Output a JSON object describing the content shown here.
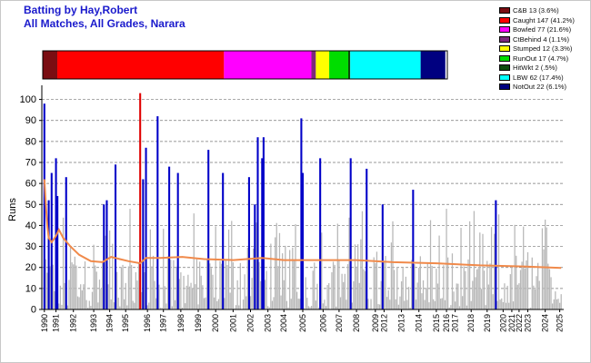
{
  "title_line1": "Batting by Hay,Robert",
  "title_line2": "All Matches, All Grades, Narara",
  "dismissals": [
    {
      "label": "C&B 13 (3.6%)",
      "pct": 3.6,
      "color": "#7a0d12"
    },
    {
      "label": "Caught 147 (41.2%)",
      "pct": 41.2,
      "color": "#ff0000"
    },
    {
      "label": "Bowled 77 (21.6%)",
      "pct": 21.6,
      "color": "#ff00ff"
    },
    {
      "label": "CtBehind 4 (1.1%)",
      "pct": 1.1,
      "color": "#7a2a7a"
    },
    {
      "label": "Stumped 12 (3.3%)",
      "pct": 3.3,
      "color": "#ffff00"
    },
    {
      "label": "RunOut 17 (4.7%)",
      "pct": 4.7,
      "color": "#00dd00"
    },
    {
      "label": "HitWkt 2 (.5%)",
      "pct": 0.5,
      "color": "#0a4d0a"
    },
    {
      "label": "LBW 62 (17.4%)",
      "pct": 17.4,
      "color": "#00ffff"
    },
    {
      "label": "NotOut 22 (6.1%)",
      "pct": 6.1,
      "color": "#000080"
    }
  ],
  "chart_data": {
    "type": "bar",
    "title": "Batting by Hay,Robert",
    "subtitle": "All Matches, All Grades, Narara",
    "ylabel": "Runs",
    "xlabel": "",
    "ylim": [
      0,
      105
    ],
    "yticks": [
      0,
      10,
      20,
      30,
      40,
      50,
      60,
      70,
      80,
      90,
      100
    ],
    "grid": "horizontal dashed",
    "innings_count": 357,
    "x_tick_labels": [
      {
        "label": "1990",
        "innings": 0
      },
      {
        "label": "1991",
        "innings": 8
      },
      {
        "label": "1992",
        "innings": 20
      },
      {
        "label": "1993",
        "innings": 34
      },
      {
        "label": "1994",
        "innings": 45
      },
      {
        "label": "1995",
        "innings": 56
      },
      {
        "label": "1996",
        "innings": 71
      },
      {
        "label": "1997",
        "innings": 82
      },
      {
        "label": "1998",
        "innings": 94
      },
      {
        "label": "1999",
        "innings": 106
      },
      {
        "label": "2000",
        "innings": 118
      },
      {
        "label": "2001",
        "innings": 130
      },
      {
        "label": "2002",
        "innings": 142
      },
      {
        "label": "2003",
        "innings": 154
      },
      {
        "label": "2004",
        "innings": 165
      },
      {
        "label": "2005",
        "innings": 178
      },
      {
        "label": "2006",
        "innings": 192
      },
      {
        "label": "2007",
        "innings": 203
      },
      {
        "label": "2008",
        "innings": 215
      },
      {
        "label": "2009",
        "innings": 228
      },
      {
        "label": "2012",
        "innings": 234
      },
      {
        "label": "2013",
        "innings": 246
      },
      {
        "label": "2014",
        "innings": 258
      },
      {
        "label": "2015",
        "innings": 270
      },
      {
        "label": "2016",
        "innings": 277
      },
      {
        "label": "2017",
        "innings": 283
      },
      {
        "label": "2018",
        "innings": 294
      },
      {
        "label": "2019",
        "innings": 305
      },
      {
        "label": "2020",
        "innings": 316
      },
      {
        "label": "2021",
        "innings": 322
      },
      {
        "label": "2022",
        "innings": 327
      },
      {
        "label": "2023",
        "innings": 333
      },
      {
        "label": "2024",
        "innings": 345
      },
      {
        "label": "2025",
        "innings": 355
      }
    ],
    "highlight_innings": [
      {
        "innings": 0,
        "runs": 98
      },
      {
        "innings": 3,
        "runs": 52
      },
      {
        "innings": 5,
        "runs": 65
      },
      {
        "innings": 8,
        "runs": 72
      },
      {
        "innings": 9,
        "runs": 54
      },
      {
        "innings": 15,
        "runs": 63
      },
      {
        "innings": 41,
        "runs": 50
      },
      {
        "innings": 43,
        "runs": 52
      },
      {
        "innings": 49,
        "runs": 69
      },
      {
        "innings": 68,
        "runs": 62
      },
      {
        "innings": 70,
        "runs": 77
      },
      {
        "innings": 78,
        "runs": 92
      },
      {
        "innings": 86,
        "runs": 68
      },
      {
        "innings": 92,
        "runs": 65
      },
      {
        "innings": 113,
        "runs": 76
      },
      {
        "innings": 123,
        "runs": 65
      },
      {
        "innings": 141,
        "runs": 63
      },
      {
        "innings": 145,
        "runs": 50
      },
      {
        "innings": 147,
        "runs": 82
      },
      {
        "innings": 150,
        "runs": 72
      },
      {
        "innings": 151,
        "runs": 82
      },
      {
        "innings": 177,
        "runs": 91
      },
      {
        "innings": 178,
        "runs": 65
      },
      {
        "innings": 190,
        "runs": 72
      },
      {
        "innings": 211,
        "runs": 72
      },
      {
        "innings": 222,
        "runs": 67
      },
      {
        "innings": 233,
        "runs": 50
      },
      {
        "innings": 254,
        "runs": 57
      },
      {
        "innings": 311,
        "runs": 52
      }
    ],
    "top_score": {
      "innings": 66,
      "runs": 103
    },
    "average_line": [
      {
        "innings": 0,
        "avg": 62
      },
      {
        "innings": 1,
        "avg": 50
      },
      {
        "innings": 2,
        "avg": 40
      },
      {
        "innings": 3,
        "avg": 34
      },
      {
        "innings": 5,
        "avg": 32
      },
      {
        "innings": 8,
        "avg": 35
      },
      {
        "innings": 10,
        "avg": 38
      },
      {
        "innings": 13,
        "avg": 34
      },
      {
        "innings": 18,
        "avg": 30
      },
      {
        "innings": 24,
        "avg": 26
      },
      {
        "innings": 32,
        "avg": 23
      },
      {
        "innings": 40,
        "avg": 22.5
      },
      {
        "innings": 46,
        "avg": 25
      },
      {
        "innings": 52,
        "avg": 24
      },
      {
        "innings": 58,
        "avg": 23
      },
      {
        "innings": 66,
        "avg": 22
      },
      {
        "innings": 70,
        "avg": 24.5
      },
      {
        "innings": 80,
        "avg": 24.5
      },
      {
        "innings": 95,
        "avg": 25
      },
      {
        "innings": 110,
        "avg": 24
      },
      {
        "innings": 130,
        "avg": 23.5
      },
      {
        "innings": 150,
        "avg": 24.5
      },
      {
        "innings": 165,
        "avg": 23.5
      },
      {
        "innings": 190,
        "avg": 23.5
      },
      {
        "innings": 215,
        "avg": 23.5
      },
      {
        "innings": 240,
        "avg": 22.5
      },
      {
        "innings": 270,
        "avg": 22
      },
      {
        "innings": 300,
        "avg": 21
      },
      {
        "innings": 330,
        "avg": 20.5
      },
      {
        "innings": 356,
        "avg": 19.8
      }
    ],
    "other_innings_approx": "grey bars for remaining innings, mostly 0-48 runs"
  }
}
